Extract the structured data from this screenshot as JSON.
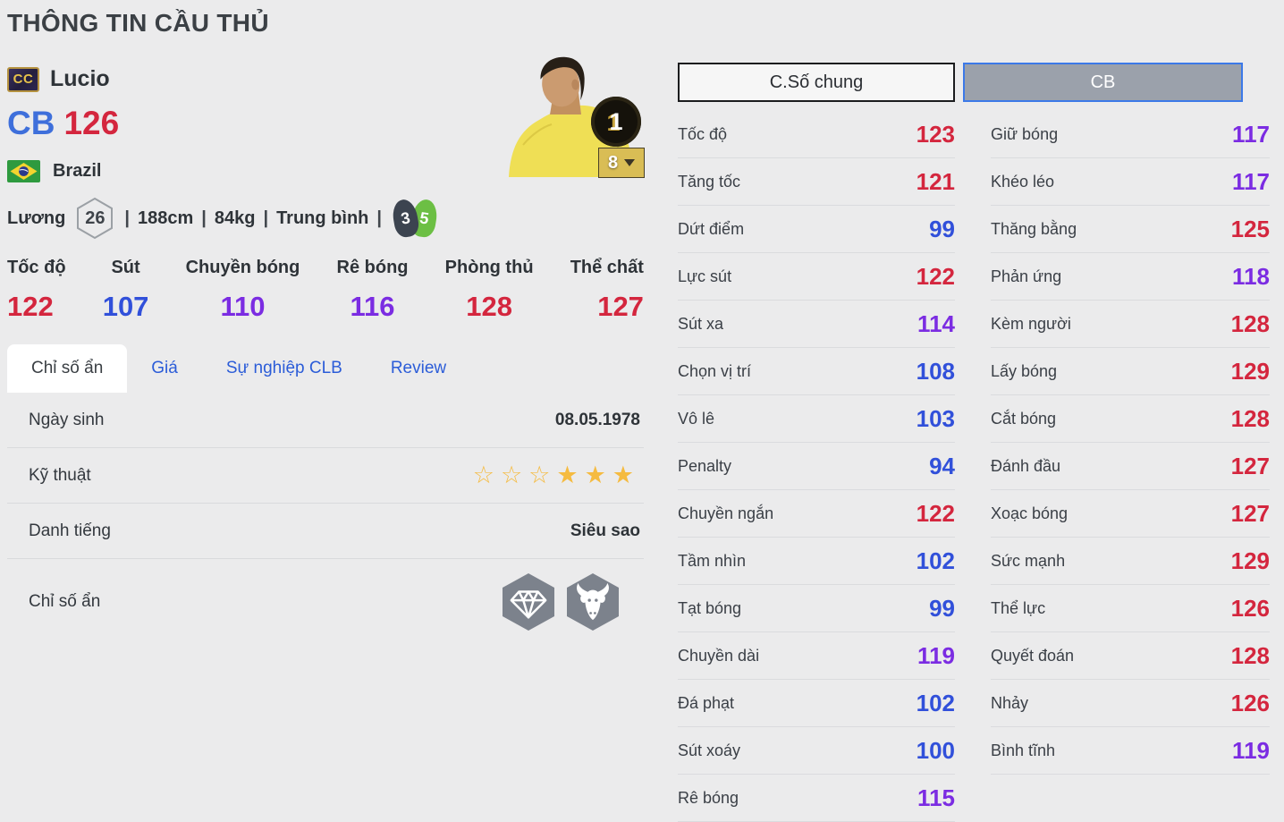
{
  "page": {
    "title": "THÔNG TIN CẦU THỦ"
  },
  "colors": {
    "stat_red": "#d4263e",
    "stat_purple": "#7b2ce2",
    "stat_blue": "#3150da",
    "position_blue": "#3e6fdb",
    "tab_link_blue": "#2b5cd8",
    "star_gold": "#f5bb40",
    "weak_foot_dark": "#3c4450",
    "strong_foot_green": "#6cbf44",
    "enhance_gold": "#d9bd55"
  },
  "player": {
    "card_badge": "CC",
    "name": "Lucio",
    "position": "CB",
    "ovr": "126",
    "nation": "Brazil",
    "salary_label": "Lương",
    "salary": "26",
    "separator": "|",
    "height": "188cm",
    "weight": "84kg",
    "foot_preference": "Trung bình",
    "weak_foot": "3",
    "strong_foot": "5",
    "level_badge": "1",
    "enhance_badge": "8"
  },
  "summary_stats": [
    {
      "label": "Tốc độ",
      "value": 122
    },
    {
      "label": "Sút",
      "value": 107
    },
    {
      "label": "Chuyền bóng",
      "value": 110
    },
    {
      "label": "Rê bóng",
      "value": 116
    },
    {
      "label": "Phòng thủ",
      "value": 128
    },
    {
      "label": "Thể chất",
      "value": 127
    }
  ],
  "tabs": {
    "items": [
      {
        "label": "Chỉ số ẩn",
        "active": true
      },
      {
        "label": "Giá",
        "active": false
      },
      {
        "label": "Sự nghiệp CLB",
        "active": false
      },
      {
        "label": "Review",
        "active": false
      }
    ]
  },
  "info": {
    "birth_label": "Ngày sinh",
    "birth_value": "08.05.1978",
    "technique_label": "Kỹ thuật",
    "technique_stars_empty": 3,
    "technique_stars_filled": 3,
    "fame_label": "Danh tiếng",
    "fame_value": "Siêu sao",
    "hidden_label": "Chỉ số ẩn",
    "hidden_icons": [
      "diamond-icon",
      "buffalo-icon"
    ]
  },
  "panels": {
    "general": {
      "button_label": "C.Số chung",
      "selected": false,
      "stats": [
        {
          "label": "Tốc độ",
          "value": 123
        },
        {
          "label": "Tăng tốc",
          "value": 121
        },
        {
          "label": "Dứt điểm",
          "value": 99
        },
        {
          "label": "Lực sút",
          "value": 122
        },
        {
          "label": "Sút xa",
          "value": 114
        },
        {
          "label": "Chọn vị trí",
          "value": 108
        },
        {
          "label": "Vô lê",
          "value": 103
        },
        {
          "label": "Penalty",
          "value": 94
        },
        {
          "label": "Chuyền ngắn",
          "value": 122
        },
        {
          "label": "Tầm nhìn",
          "value": 102
        },
        {
          "label": "Tạt bóng",
          "value": 99
        },
        {
          "label": "Chuyền dài",
          "value": 119
        },
        {
          "label": "Đá phạt",
          "value": 102
        },
        {
          "label": "Sút xoáy",
          "value": 100
        },
        {
          "label": "Rê bóng",
          "value": 115
        }
      ]
    },
    "cb": {
      "button_label": "CB",
      "selected": true,
      "stats": [
        {
          "label": "Giữ bóng",
          "value": 117
        },
        {
          "label": "Khéo léo",
          "value": 117
        },
        {
          "label": "Thăng bằng",
          "value": 125
        },
        {
          "label": "Phản ứng",
          "value": 118
        },
        {
          "label": "Kèm người",
          "value": 128
        },
        {
          "label": "Lấy bóng",
          "value": 129
        },
        {
          "label": "Cắt bóng",
          "value": 128
        },
        {
          "label": "Đánh đầu",
          "value": 127
        },
        {
          "label": "Xoạc bóng",
          "value": 127
        },
        {
          "label": "Sức mạnh",
          "value": 129
        },
        {
          "label": "Thể lực",
          "value": 126
        },
        {
          "label": "Quyết đoán",
          "value": 128
        },
        {
          "label": "Nhảy",
          "value": 126
        },
        {
          "label": "Bình tĩnh",
          "value": 119
        }
      ]
    }
  }
}
